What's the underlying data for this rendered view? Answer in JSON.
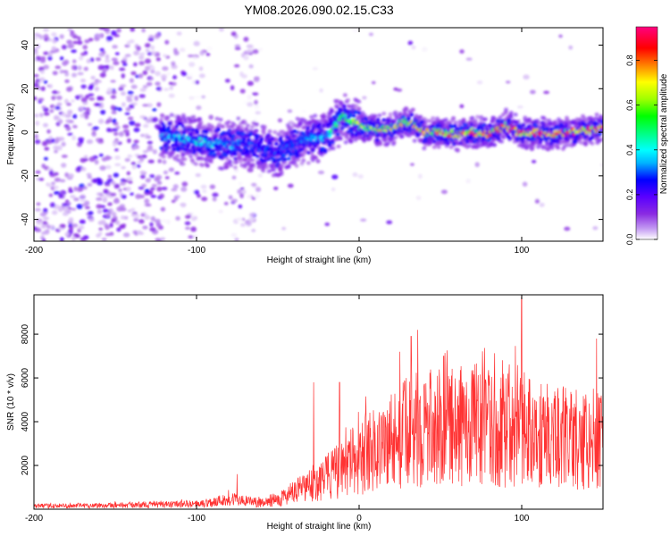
{
  "title": "YM08.2026.090.02.15.C33",
  "chart_data": [
    {
      "type": "heatmap",
      "xlabel": "Height of straight line (km)",
      "ylabel": "Frequency (Hz)",
      "xlim": [
        -200,
        150
      ],
      "ylim": [
        -50,
        48
      ],
      "xticks": [
        -200,
        -100,
        0,
        100
      ],
      "yticks": [
        -40,
        -20,
        0,
        20,
        40
      ],
      "colorbar": {
        "label": "Normalized spectral amplitude",
        "range": [
          0,
          0.95
        ],
        "ticks": [
          "0.0",
          "0.2",
          "0.4",
          "0.6",
          "0.8"
        ],
        "colormap": [
          "#ffffff",
          "#c49cf2",
          "#8a2be2",
          "#5a00ff",
          "#0000ff",
          "#00b4ff",
          "#00ffff",
          "#00ff80",
          "#00ff00",
          "#a0ff00",
          "#ffff00",
          "#ff8000",
          "#ff0000",
          "#ff0080"
        ]
      },
      "ridge": {
        "x": [
          -120,
          -110,
          -100,
          -90,
          -80,
          -70,
          -60,
          -50,
          -40,
          -30,
          -20,
          -15,
          -10,
          -5,
          0,
          10,
          20,
          30,
          40,
          50,
          60,
          70,
          80,
          90,
          100,
          110,
          120,
          130,
          140,
          150
        ],
        "y": [
          -2,
          -3,
          -4,
          -5,
          -6,
          -5,
          -7,
          -9,
          -5,
          -3,
          -2,
          2,
          8,
          5,
          3,
          1,
          2,
          5,
          0,
          0,
          -1,
          0,
          -1,
          3,
          -1,
          0,
          -1,
          0,
          1,
          2
        ],
        "amplitude": [
          0.35,
          0.4,
          0.42,
          0.4,
          0.35,
          0.3,
          0.3,
          0.28,
          0.3,
          0.35,
          0.4,
          0.5,
          0.55,
          0.6,
          0.65,
          0.68,
          0.7,
          0.72,
          0.75,
          0.78,
          0.8,
          0.82,
          0.85,
          0.88,
          0.88,
          0.9,
          0.9,
          0.9,
          0.88,
          0.85
        ]
      }
    },
    {
      "type": "line",
      "color": "#ff3333",
      "xlabel": "Height of straight line (km)",
      "ylabel": "SNR (10 * v/v)",
      "xlim": [
        -200,
        150
      ],
      "ylim": [
        0,
        9800
      ],
      "xticks": [
        -200,
        -100,
        0,
        100
      ],
      "yticks": [
        2000,
        4000,
        6000,
        8000
      ],
      "envelope": {
        "x": [
          -200,
          -150,
          -100,
          -90,
          -80,
          -70,
          -60,
          -50,
          -40,
          -30,
          -20,
          -10,
          0,
          10,
          20,
          30,
          40,
          50,
          60,
          70,
          80,
          90,
          100,
          110,
          120,
          130,
          140,
          150
        ],
        "y": [
          150,
          200,
          250,
          350,
          500,
          400,
          300,
          500,
          800,
          1200,
          1600,
          2000,
          2600,
          3000,
          3400,
          3800,
          4000,
          4000,
          4100,
          4200,
          4000,
          3900,
          4000,
          3700,
          3600,
          3500,
          3400,
          3300
        ]
      },
      "peaks": [
        {
          "x": 100,
          "y": 9700
        },
        {
          "x": 36,
          "y": 8200
        },
        {
          "x": 32,
          "y": 7900
        },
        {
          "x": 146,
          "y": 7800
        },
        {
          "x": 25,
          "y": 7200
        },
        {
          "x": 52,
          "y": 7000
        },
        {
          "x": -28,
          "y": 5800
        },
        {
          "x": -12,
          "y": 5800
        },
        {
          "x": -75,
          "y": 1600
        }
      ]
    }
  ]
}
